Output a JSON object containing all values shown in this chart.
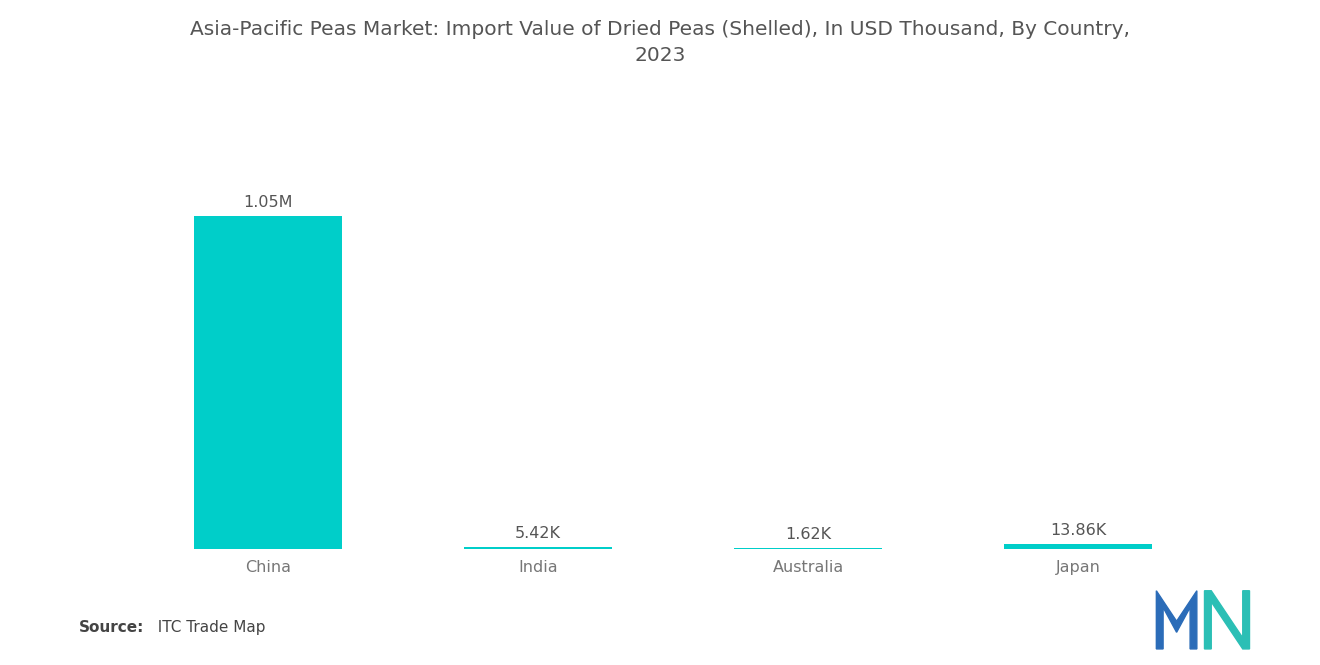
{
  "title_line1": "Asia-Pacific Peas Market: Import Value of Dried Peas (Shelled), In USD Thousand, By Country,",
  "title_line2": "2023",
  "categories": [
    "China",
    "India",
    "Australia",
    "Japan"
  ],
  "values": [
    1050000,
    5420,
    1620,
    13860
  ],
  "labels": [
    "1.05M",
    "5.42K",
    "1.62K",
    "13.86K"
  ],
  "bar_color": "#00CEC9",
  "background_color": "#ffffff",
  "title_color": "#555555",
  "label_color": "#555555",
  "tick_color": "#777777",
  "source_bold": "Source:",
  "source_normal": "  ITC Trade Map",
  "title_fontsize": 14.5,
  "label_fontsize": 11.5,
  "axis_label_fontsize": 11.5,
  "source_fontsize": 11,
  "logo_color_blue": "#2B6CB8",
  "logo_color_teal": "#2BBFB5"
}
